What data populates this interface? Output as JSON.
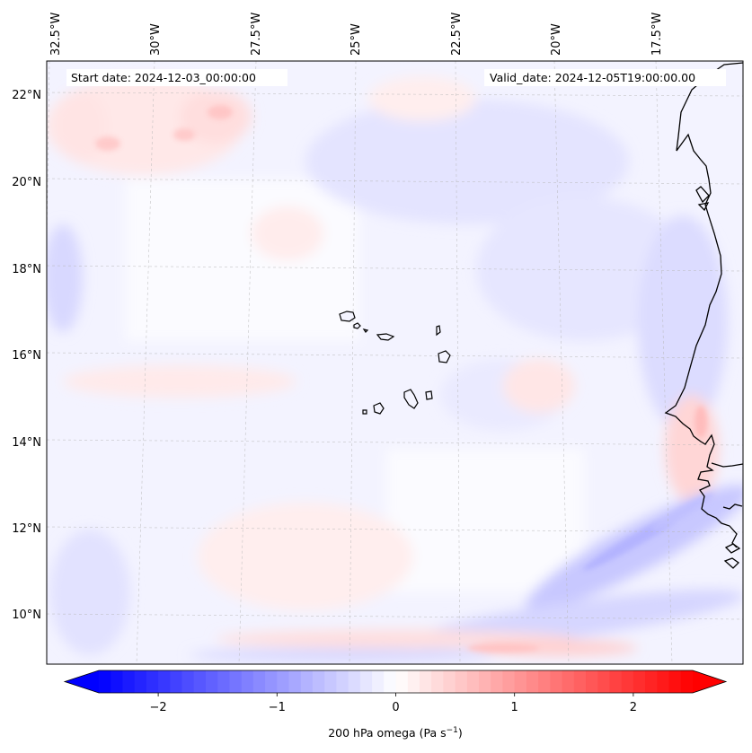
{
  "map": {
    "start_date": "Start date: 2024-12-03_00:00:00",
    "valid_date": "Valid_date: 2024-12-05T19:00:00.00",
    "lon_labels": [
      "32.5°W",
      "30°W",
      "27.5°W",
      "25°W",
      "22.5°W",
      "20°W",
      "17.5°W"
    ],
    "lat_labels": [
      "22°N",
      "20°N",
      "18°N",
      "16°N",
      "14°N",
      "12°N",
      "10°N"
    ],
    "lon_range": [
      -32.5,
      -15.5
    ],
    "lat_range": [
      8.9,
      22.7
    ],
    "gridlines": true
  },
  "colorbar": {
    "label_prefix": "200 hPa omega (Pa s",
    "label_exp": "−1",
    "label_suffix": ")",
    "ticks": [
      "−2",
      "−1",
      "0",
      "1",
      "2"
    ],
    "tick_values": [
      -2,
      -1,
      0,
      1,
      2
    ],
    "range": [
      -2.5,
      2.5
    ],
    "colormap": "bwr",
    "extend": "both",
    "color_min": "#0000ff",
    "color_mid": "#ffffff",
    "color_max": "#ff0000"
  }
}
